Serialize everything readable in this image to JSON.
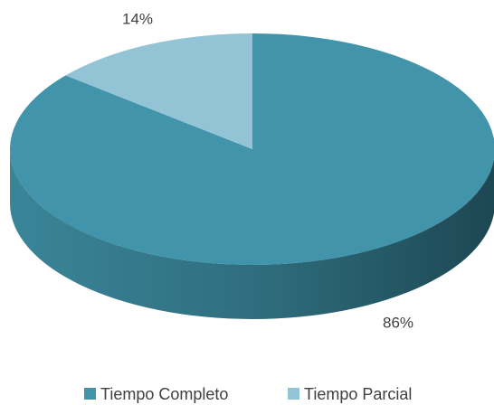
{
  "chart_data": {
    "type": "pie",
    "categories": [
      "Tiempo Completo",
      "Tiempo Parcial"
    ],
    "values": [
      86,
      14
    ],
    "value_labels": [
      "86%",
      "14%"
    ],
    "colors": [
      "#4294ab",
      "#93c4d6"
    ],
    "legend": "bottom"
  }
}
